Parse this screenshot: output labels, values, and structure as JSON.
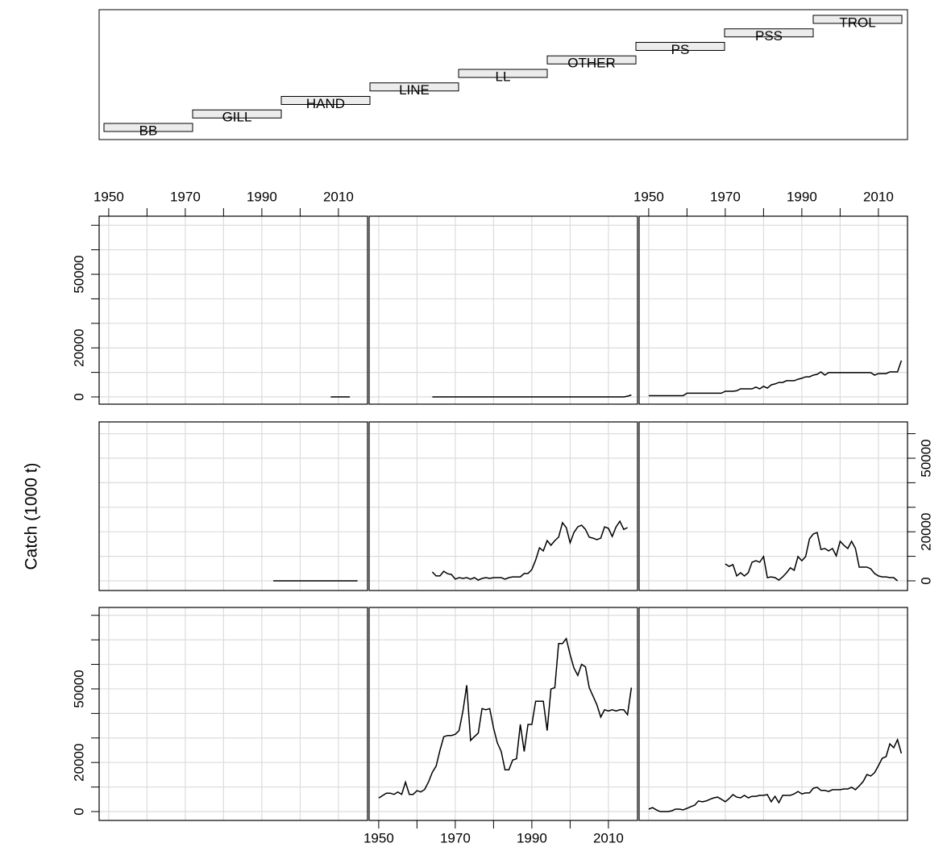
{
  "chart_data": {
    "type": "line",
    "ylabel": "Catch (1000 t)",
    "xlim": [
      1947.5,
      2017.6
    ],
    "xticks": [
      1950,
      1970,
      1990,
      2010
    ],
    "xticks_unlabeled": [
      1960,
      1980,
      2000
    ],
    "yticks": [
      0,
      20000,
      50000
    ],
    "yticks_unlabeled": [
      10000,
      30000,
      40000,
      60000,
      70000,
      80000
    ],
    "grid": true,
    "color": "#000000",
    "panels": [
      {
        "name": "BB",
        "ylim": [
          -3620,
          83200
        ],
        "x": [],
        "values": []
      },
      {
        "name": "GILL",
        "ylim": [
          -3620,
          83200
        ],
        "x": [
          1950,
          1951,
          1952,
          1953,
          1954,
          1955,
          1956,
          1957,
          1958,
          1959,
          1960,
          1961,
          1962,
          1963,
          1964,
          1965,
          1966,
          1967,
          1968,
          1969,
          1970,
          1971,
          1972,
          1973,
          1974,
          1975,
          1976,
          1977,
          1978,
          1979,
          1980,
          1981,
          1982,
          1983,
          1984,
          1985,
          1986,
          1987,
          1988,
          1989,
          1990,
          1991,
          1992,
          1993,
          1994,
          1995,
          1996,
          1997,
          1998,
          1999,
          2000,
          2001,
          2002,
          2003,
          2004,
          2005,
          2006,
          2007,
          2008,
          2009,
          2010,
          2011,
          2012,
          2013,
          2014,
          2015,
          2016
        ],
        "values": [
          5500,
          6500,
          7500,
          7500,
          7000,
          8000,
          7000,
          12000,
          7000,
          7000,
          8500,
          8000,
          9000,
          12000,
          16000,
          18500,
          25000,
          30500,
          31000,
          31000,
          31500,
          33000,
          41000,
          51500,
          29000,
          30500,
          32000,
          42000,
          41500,
          42000,
          34000,
          28000,
          24500,
          17000,
          17000,
          21000,
          21500,
          35500,
          24500,
          35500,
          35500,
          45000,
          45000,
          45000,
          33000,
          50000,
          50500,
          68500,
          68500,
          70500,
          64000,
          58500,
          55500,
          60000,
          59000,
          50500,
          47000,
          43500,
          38500,
          41500,
          41000,
          41500,
          41000,
          41500,
          41500,
          39500,
          50500
        ]
      },
      {
        "name": "HAND",
        "ylim": [
          -3620,
          83200
        ],
        "x": [
          1950,
          1951,
          1952,
          1953,
          1954,
          1955,
          1956,
          1957,
          1958,
          1959,
          1960,
          1961,
          1962,
          1963,
          1964,
          1965,
          1966,
          1967,
          1968,
          1969,
          1970,
          1971,
          1972,
          1973,
          1974,
          1975,
          1976,
          1977,
          1978,
          1979,
          1980,
          1981,
          1982,
          1983,
          1984,
          1985,
          1986,
          1987,
          1988,
          1989,
          1990,
          1991,
          1992,
          1993,
          1994,
          1995,
          1996,
          1997,
          1998,
          1999,
          2000,
          2001,
          2002,
          2003,
          2004,
          2005,
          2006,
          2007,
          2008,
          2009,
          2010,
          2011,
          2012,
          2013,
          2014,
          2015,
          2016
        ],
        "values": [
          1000,
          1600,
          700,
          0,
          0,
          0,
          300,
          1000,
          1000,
          700,
          1300,
          2000,
          2600,
          4300,
          4000,
          4300,
          5000,
          5600,
          5900,
          5000,
          4000,
          5300,
          6900,
          5900,
          5600,
          6600,
          5600,
          6200,
          6200,
          6600,
          6600,
          6900,
          4000,
          6200,
          3600,
          6600,
          6600,
          6600,
          7200,
          8200,
          7200,
          7600,
          7600,
          9500,
          9900,
          8600,
          8600,
          8200,
          8900,
          8900,
          8900,
          9200,
          9200,
          9900,
          8900,
          10500,
          12200,
          15100,
          14500,
          15800,
          18700,
          21700,
          22400,
          27600,
          26000,
          29300,
          23700
        ]
      },
      {
        "name": "LINE",
        "ylim": [
          -3950,
          64800
        ],
        "x": [
          1993,
          2015
        ],
        "values": [
          0,
          0
        ]
      },
      {
        "name": "LL",
        "ylim": [
          -3950,
          64800
        ],
        "x": [
          1964,
          1965,
          1966,
          1967,
          1968,
          1969,
          1970,
          1971,
          1972,
          1973,
          1974,
          1975,
          1976,
          1977,
          1978,
          1979,
          1980,
          1981,
          1982,
          1983,
          1984,
          1985,
          1986,
          1987,
          1988,
          1989,
          1990,
          1991,
          1992,
          1993,
          1994,
          1995,
          1996,
          1997,
          1998,
          1999,
          2000,
          2001,
          2002,
          2003,
          2004,
          2005,
          2006,
          2007,
          2008,
          2009,
          2010,
          2011,
          2012,
          2013,
          2014,
          2015
        ],
        "values": [
          3600,
          2000,
          2000,
          3900,
          2900,
          2600,
          700,
          1300,
          1000,
          1300,
          700,
          1300,
          300,
          1000,
          1300,
          1000,
          1300,
          1300,
          1300,
          700,
          1300,
          1600,
          1600,
          1600,
          3000,
          3000,
          4600,
          8500,
          13500,
          12200,
          16400,
          14500,
          16400,
          17800,
          23700,
          21700,
          15500,
          19700,
          22000,
          22700,
          21000,
          17800,
          17400,
          16800,
          17400,
          22000,
          21400,
          18100,
          22000,
          24300,
          21000,
          21700
        ]
      },
      {
        "name": "OTHER",
        "ylim": [
          -3950,
          64800
        ],
        "x": [
          1970,
          1971,
          1972,
          1973,
          1974,
          1975,
          1976,
          1977,
          1978,
          1979,
          1980,
          1981,
          1982,
          1983,
          1984,
          1985,
          1986,
          1987,
          1988,
          1989,
          1990,
          1991,
          1992,
          1993,
          1994,
          1995,
          1996,
          1997,
          1998,
          1999,
          2000,
          2001,
          2002,
          2003,
          2004,
          2005,
          2006,
          2007,
          2008,
          2009,
          2010,
          2011,
          2012,
          2013,
          2014,
          2015
        ],
        "values": [
          6900,
          5900,
          6600,
          2000,
          3300,
          2000,
          3300,
          7600,
          8200,
          7600,
          9900,
          1300,
          1600,
          1300,
          300,
          1600,
          3300,
          5300,
          4300,
          9900,
          8200,
          9900,
          17100,
          19100,
          19700,
          12800,
          13200,
          12200,
          13200,
          10200,
          16100,
          14500,
          13200,
          16100,
          13200,
          5600,
          5600,
          5600,
          4900,
          3000,
          2000,
          1600,
          1600,
          1300,
          1300,
          0
        ]
      },
      {
        "name": "PS",
        "ylim": [
          -2960,
          73700
        ],
        "x": [
          2008,
          2013
        ],
        "values": [
          0,
          0
        ]
      },
      {
        "name": "PSS",
        "ylim": [
          -2960,
          73700
        ],
        "x": [
          1964,
          2014,
          2015,
          2016
        ],
        "values": [
          0,
          0,
          300,
          800
        ]
      },
      {
        "name": "TROL",
        "ylim": [
          -2960,
          73700
        ],
        "x": [
          1950,
          1951,
          1952,
          1953,
          1954,
          1955,
          1956,
          1957,
          1958,
          1959,
          1960,
          1961,
          1962,
          1963,
          1964,
          1965,
          1966,
          1967,
          1968,
          1969,
          1970,
          1971,
          1972,
          1973,
          1974,
          1975,
          1976,
          1977,
          1978,
          1979,
          1980,
          1981,
          1982,
          1983,
          1984,
          1985,
          1986,
          1987,
          1988,
          1989,
          1990,
          1991,
          1992,
          1993,
          1994,
          1995,
          1996,
          1997,
          1998,
          1999,
          2000,
          2001,
          2002,
          2003,
          2004,
          2005,
          2006,
          2007,
          2008,
          2009,
          2010,
          2011,
          2012,
          2013,
          2014,
          2015,
          2016
        ],
        "values": [
          500,
          500,
          500,
          500,
          500,
          500,
          500,
          500,
          500,
          500,
          1500,
          1500,
          1500,
          1500,
          1500,
          1500,
          1500,
          1500,
          1500,
          1500,
          2300,
          2300,
          2300,
          2500,
          3300,
          3300,
          3300,
          3300,
          4000,
          3300,
          4300,
          3600,
          4900,
          5300,
          5900,
          5900,
          6600,
          6600,
          6600,
          7200,
          7600,
          8200,
          8200,
          8900,
          9200,
          10200,
          8900,
          9900,
          9900,
          9900,
          9900,
          9900,
          9900,
          9900,
          9900,
          9900,
          9900,
          9900,
          9900,
          8900,
          9500,
          9500,
          9500,
          10200,
          10200,
          10200,
          14800
        ]
      }
    ]
  }
}
